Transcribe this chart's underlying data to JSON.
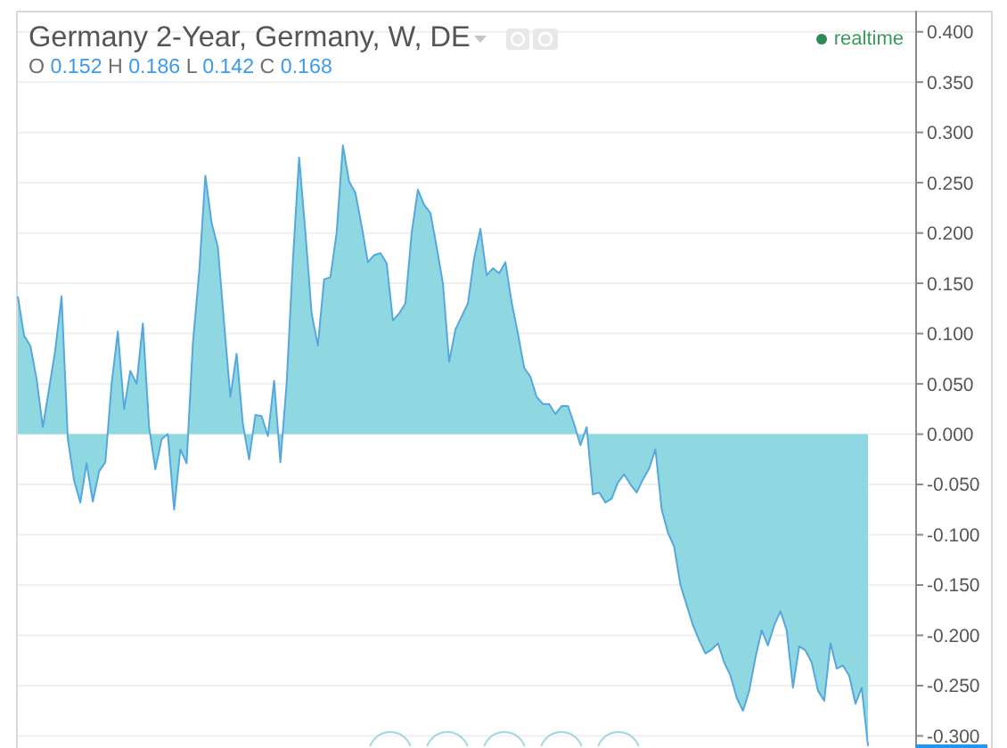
{
  "chart_data": {
    "type": "area",
    "title": "Germany 2-Year, Germany, W, DE",
    "subtitle": "O 0.152 H 0.186 L 0.142 C 0.168",
    "annotations": [
      "realtime"
    ],
    "categories": [
      null,
      null,
      null,
      null,
      null,
      null,
      null,
      null,
      null,
      null,
      null,
      null,
      null,
      null,
      null,
      null,
      null,
      null,
      null,
      null,
      null,
      null,
      null,
      null,
      null,
      null,
      null,
      null,
      null,
      null,
      null,
      null,
      null,
      null,
      null,
      null,
      null,
      null,
      null,
      null,
      null,
      null,
      null,
      null,
      null,
      null,
      null,
      null,
      null,
      null,
      null,
      null,
      null,
      null,
      null,
      null,
      null,
      null,
      null,
      null,
      null,
      null,
      null,
      null,
      null,
      null,
      null,
      null,
      null,
      null,
      null,
      null,
      null,
      null,
      null,
      null,
      null,
      null,
      null,
      null,
      null,
      null,
      null,
      null,
      null,
      null,
      null,
      null,
      null,
      null,
      null,
      null,
      null,
      null,
      null,
      null,
      null,
      null,
      null,
      null,
      null,
      null,
      null,
      null,
      null,
      null,
      null,
      null,
      null,
      null,
      null,
      null,
      null,
      null,
      null,
      null,
      null,
      null,
      null,
      null,
      null,
      null,
      null,
      null,
      null,
      null,
      null,
      null,
      null,
      null,
      null,
      null,
      null,
      null,
      null,
      null,
      null
    ],
    "values": [
      0.137,
      0.098,
      0.088,
      0.055,
      0.007,
      0.045,
      0.084,
      0.137,
      -0.005,
      -0.046,
      -0.068,
      -0.029,
      -0.067,
      -0.037,
      -0.028,
      0.05,
      0.102,
      0.025,
      0.063,
      0.05,
      0.11,
      0.007,
      -0.035,
      -0.005,
      0,
      -0.075,
      -0.015,
      -0.029,
      0.09,
      0.16,
      0.257,
      0.21,
      0.186,
      0.11,
      0.037,
      0.08,
      0.01,
      -0.025,
      0.019,
      0.018,
      -0.002,
      0.053,
      -0.028,
      0.05,
      0.172,
      0.275,
      0.201,
      0.12,
      0.088,
      0.154,
      0.156,
      0.2,
      0.287,
      0.251,
      0.24,
      0.207,
      0.171,
      0.178,
      0.18,
      0.17,
      0.113,
      0.12,
      0.13,
      0.2,
      0.243,
      0.228,
      0.22,
      0.186,
      0.15,
      0.072,
      0.104,
      0.117,
      0.13,
      0.175,
      0.204,
      0.158,
      0.165,
      0.16,
      0.171,
      0.131,
      0.1,
      0.066,
      0.057,
      0.037,
      0.03,
      0.03,
      0.02,
      0.028,
      0.028,
      0.01,
      -0.011,
      0.007,
      -0.06,
      -0.058,
      -0.068,
      -0.064,
      -0.048,
      -0.04,
      -0.05,
      -0.058,
      -0.045,
      -0.034,
      -0.015,
      -0.075,
      -0.098,
      -0.112,
      -0.15,
      -0.17,
      -0.19,
      -0.205,
      -0.218,
      -0.214,
      -0.208,
      -0.227,
      -0.24,
      -0.262,
      -0.275,
      -0.255,
      -0.222,
      -0.195,
      -0.21,
      -0.19,
      -0.176,
      -0.195,
      -0.252,
      -0.211,
      -0.215,
      -0.227,
      -0.255,
      -0.265,
      -0.208,
      -0.233,
      -0.23,
      -0.24,
      -0.268,
      -0.252,
      -0.31
    ],
    "color": "#55a8dd",
    "ylim": [
      -0.312,
      0.421
    ],
    "yticks": [
      {
        "value": 0.4,
        "label": "0.400"
      },
      {
        "value": 0.35,
        "label": "0.350"
      },
      {
        "value": 0.3,
        "label": "0.300"
      },
      {
        "value": 0.25,
        "label": "0.250"
      },
      {
        "value": 0.2,
        "label": "0.200"
      },
      {
        "value": 0.15,
        "label": "0.150"
      },
      {
        "value": 0.1,
        "label": "0.100"
      },
      {
        "value": 0.05,
        "label": "0.050"
      },
      {
        "value": 0,
        "label": "0.000"
      },
      {
        "value": -0.05,
        "label": "-0.050"
      },
      {
        "value": -0.1,
        "label": "-0.100"
      },
      {
        "value": -0.15,
        "label": "-0.150"
      },
      {
        "value": -0.2,
        "label": "-0.200"
      },
      {
        "value": -0.25,
        "label": "-0.250"
      },
      {
        "value": -0.3,
        "label": "-0.300"
      }
    ],
    "grid": "y",
    "tick_labels": "y"
  }
}
